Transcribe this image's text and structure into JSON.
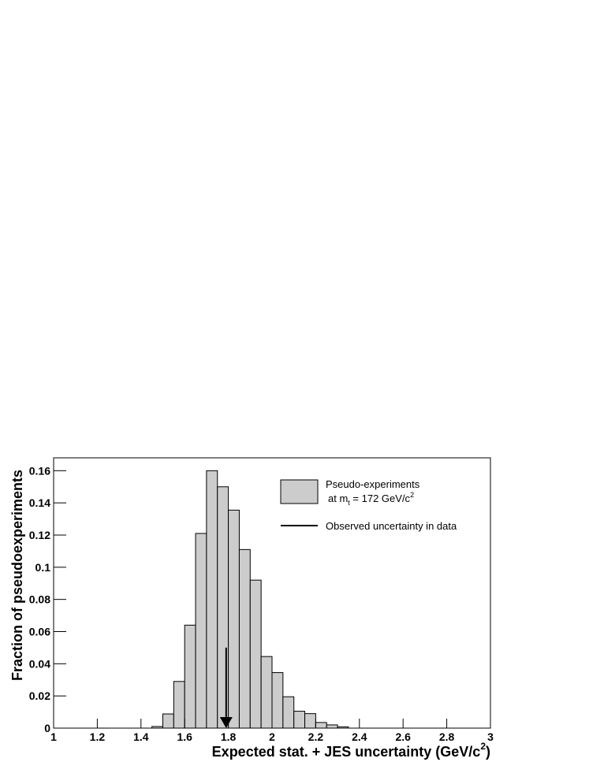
{
  "chart_data": {
    "type": "histogram",
    "bins": [
      1.45,
      1.5,
      1.55,
      1.6,
      1.65,
      1.7,
      1.75,
      1.8,
      1.85,
      1.9,
      1.95,
      2.0,
      2.05,
      2.1,
      2.15,
      2.2,
      2.25,
      2.3,
      2.35
    ],
    "values": [
      0.001,
      0.0088,
      0.029,
      0.064,
      0.121,
      0.16,
      0.15,
      0.1355,
      0.111,
      0.092,
      0.0445,
      0.0345,
      0.0195,
      0.0105,
      0.009,
      0.0035,
      0.002,
      0.0008
    ],
    "color": "#cccccc",
    "xlim": [
      1,
      3
    ],
    "ylim": [
      0,
      0.168
    ],
    "xticks": [
      1,
      1.2,
      1.4,
      1.6,
      1.8,
      2,
      2.2,
      2.4,
      2.6,
      2.8,
      3
    ],
    "yticks": [
      0,
      0.02,
      0.04,
      0.06,
      0.08,
      0.1,
      0.12,
      0.14,
      0.16
    ],
    "x_label": [
      "Expected stat. + JES uncertainty (GeV/c",
      "2",
      ")"
    ],
    "y_label": "Fraction of pseudoexperiments",
    "legend": {
      "histogram_entry": [
        "Pseudo-experiments",
        "at m",
        "t",
        " = 172 GeV/c",
        "2"
      ],
      "arrow_entry": "Observed uncertainty in data"
    },
    "arrow": {
      "x": 1.79,
      "y_start": 0.05,
      "y_end": 0
    }
  }
}
